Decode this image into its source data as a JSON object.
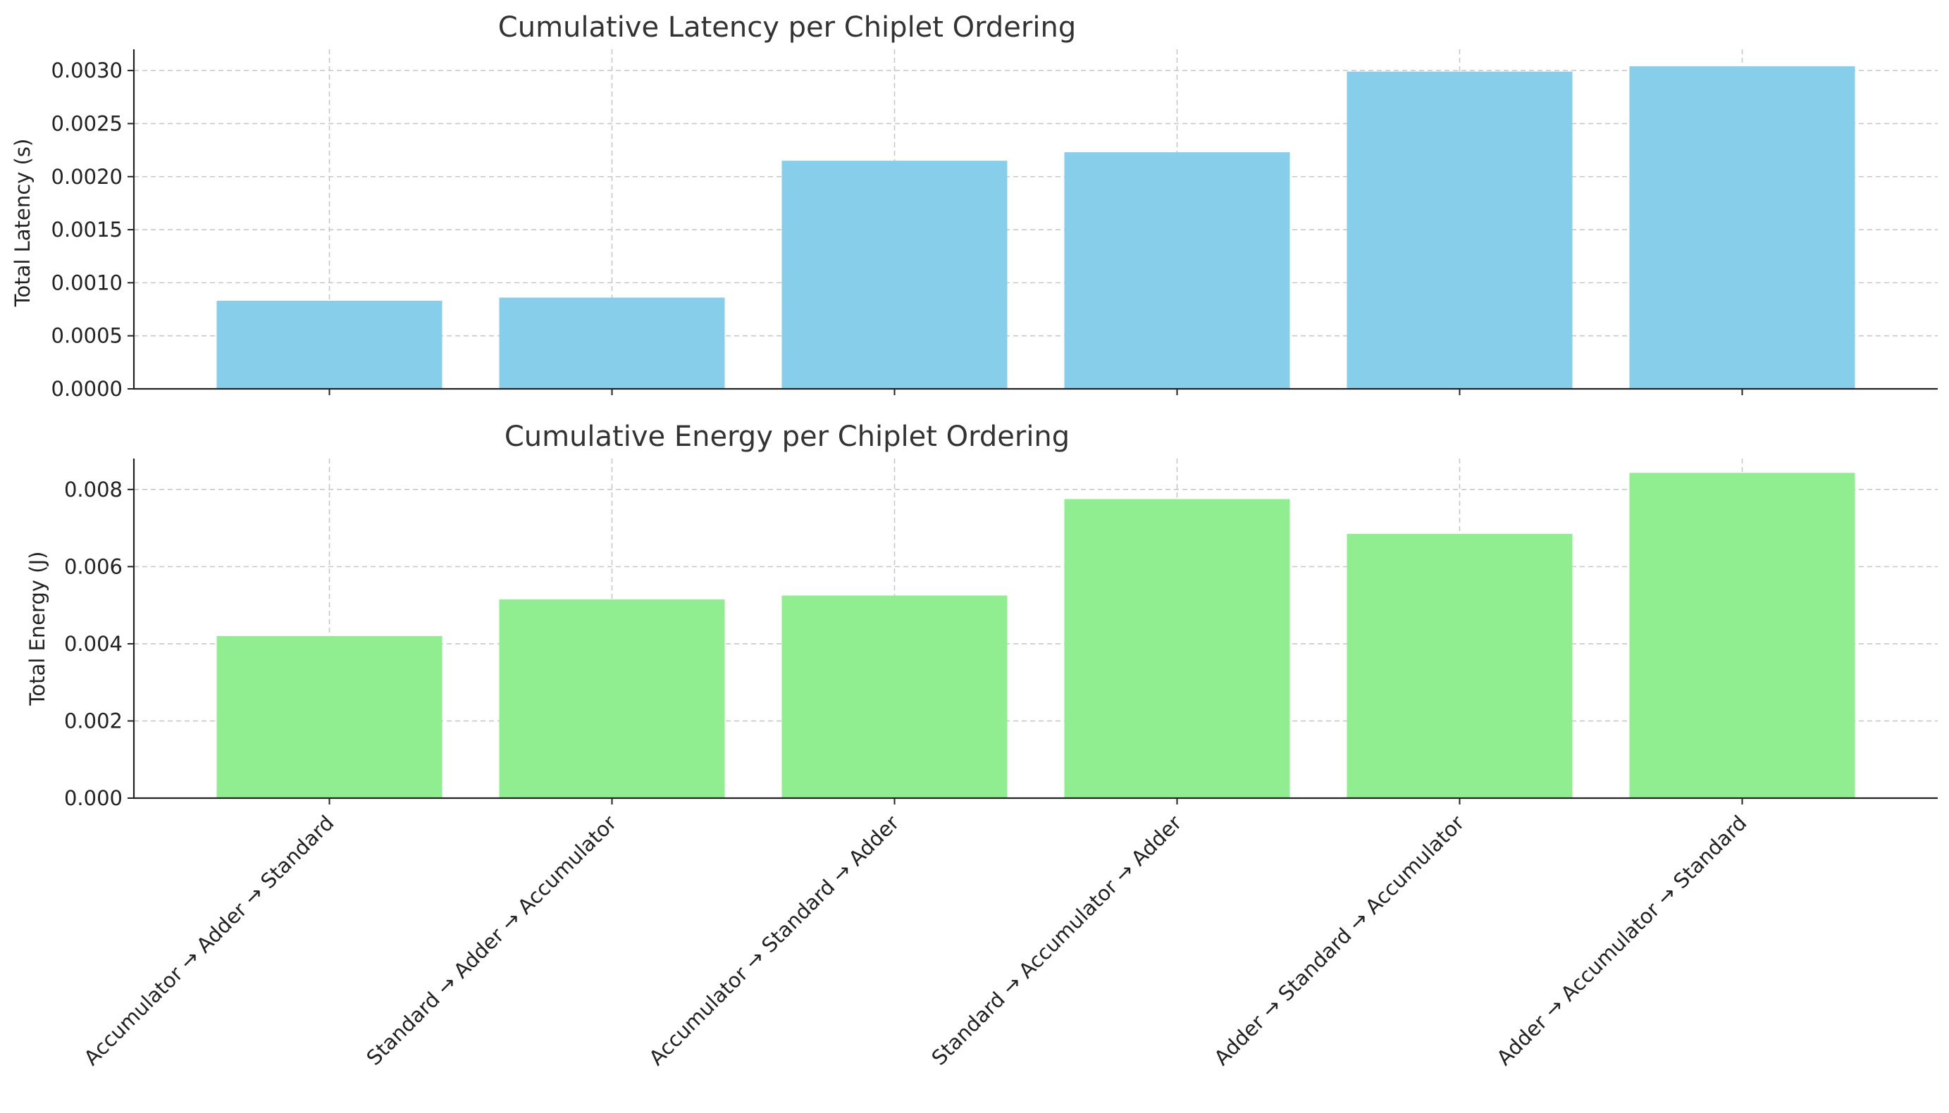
{
  "chart_data": [
    {
      "type": "bar",
      "title": "Cumulative Latency per Chiplet Ordering",
      "xlabel": "",
      "ylabel": "Total Latency (s)",
      "ylim": [
        0,
        0.0032
      ],
      "yticks": [
        "0.0000",
        "0.0005",
        "0.0010",
        "0.0015",
        "0.0020",
        "0.0025",
        "0.0030"
      ],
      "grid": true,
      "bar_color": "#87ceeb",
      "categories": [
        "Accumulator → Adder → Standard",
        "Standard → Adder → Accumulator",
        "Accumulator → Standard → Adder",
        "Standard → Accumulator → Adder",
        "Adder → Standard → Accumulator",
        "Adder → Accumulator → Standard"
      ],
      "values": [
        0.00083,
        0.00086,
        0.00215,
        0.00223,
        0.00299,
        0.00304
      ]
    },
    {
      "type": "bar",
      "title": "Cumulative Energy per Chiplet Ordering",
      "xlabel": "",
      "ylabel": "Total Energy (J)",
      "ylim": [
        0,
        0.0088
      ],
      "yticks": [
        "0.000",
        "0.002",
        "0.004",
        "0.006",
        "0.008"
      ],
      "grid": true,
      "bar_color": "#90ee90",
      "categories": [
        "Accumulator → Adder → Standard",
        "Standard → Adder → Accumulator",
        "Accumulator → Standard → Adder",
        "Standard → Accumulator → Adder",
        "Adder → Standard → Accumulator",
        "Adder → Accumulator → Standard"
      ],
      "values": [
        0.0042,
        0.00515,
        0.00525,
        0.00775,
        0.00685,
        0.00843
      ]
    }
  ]
}
